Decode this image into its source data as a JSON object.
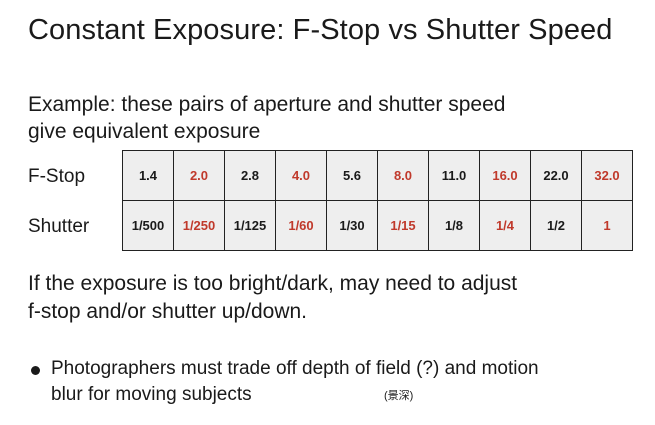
{
  "title": "Constant Exposure: F-Stop vs Shutter Speed",
  "intro": {
    "line1": "Example: these pairs of aperture and shutter speed",
    "line2": "give equivalent exposure"
  },
  "table": {
    "fstop_label": "F-Stop",
    "shutter_label": "Shutter",
    "fstop": [
      "1.4",
      "2.0",
      "2.8",
      "4.0",
      "5.6",
      "8.0",
      "11.0",
      "16.0",
      "22.0",
      "32.0"
    ],
    "shutter": [
      "1/500",
      "1/250",
      "1/125",
      "1/60",
      "1/30",
      "1/15",
      "1/8",
      "1/4",
      "1/2",
      "1"
    ],
    "colors": {
      "normal": "#1a1a1a",
      "highlight": "#c0392b",
      "cell_bg": "#eeeeee"
    }
  },
  "paragraph": {
    "line1": "If the exposure is too bright/dark, may need to adjust",
    "line2": "f-stop and/or shutter up/down."
  },
  "bullet": {
    "line1": "Photographers must trade off depth of field (?) and motion",
    "line2": "blur for moving subjects",
    "annotation": "(景深)"
  }
}
